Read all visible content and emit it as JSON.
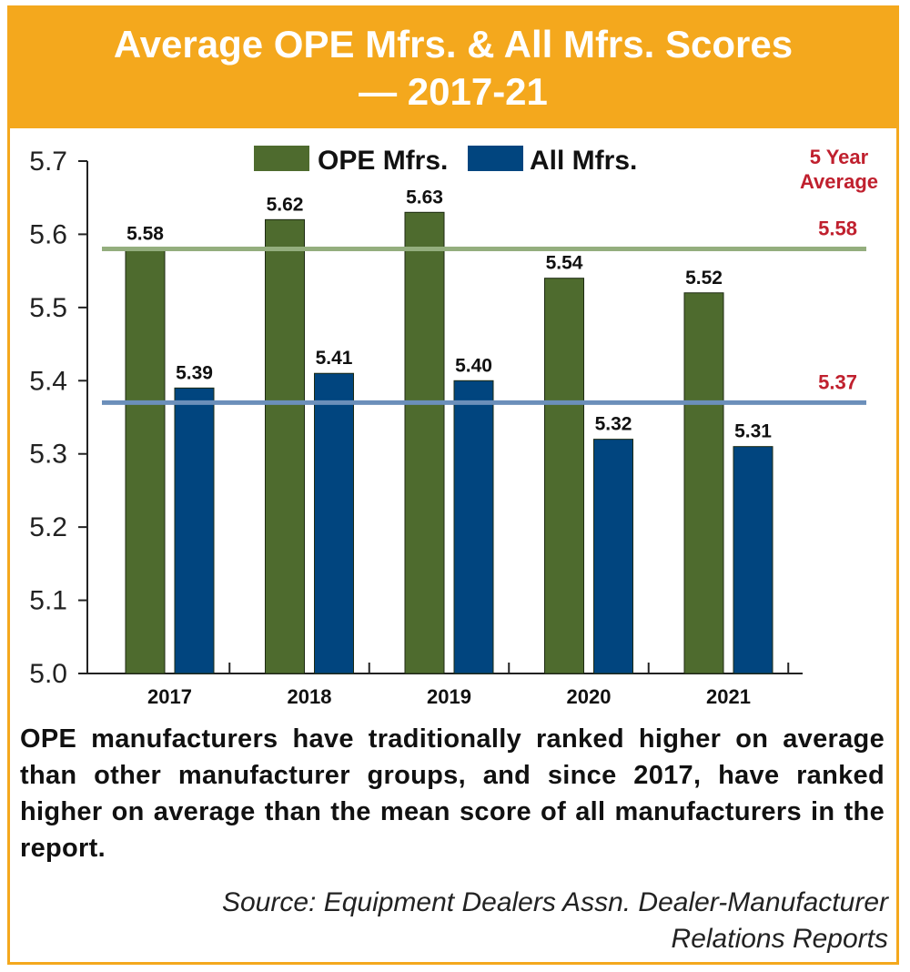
{
  "header": {
    "title_line1": "Average OPE Mfrs. & All Mfrs. Scores",
    "title_line2": "— 2017-21"
  },
  "chart_data": {
    "type": "bar",
    "title": "Average OPE Mfrs. & All Mfrs. Scores — 2017-21",
    "categories": [
      "2017",
      "2018",
      "2019",
      "2020",
      "2021"
    ],
    "series": [
      {
        "name": "OPE Mfrs.",
        "values": [
          5.58,
          5.62,
          5.63,
          5.54,
          5.52
        ],
        "color": "#4e6b2e"
      },
      {
        "name": "All Mfrs.",
        "values": [
          5.39,
          5.41,
          5.4,
          5.32,
          5.31
        ],
        "color": "#01457f"
      }
    ],
    "value_labels": [
      [
        "5.58",
        "5.62",
        "5.63",
        "5.54",
        "5.52"
      ],
      [
        "5.39",
        "5.41",
        "5.40",
        "5.32",
        "5.31"
      ]
    ],
    "ylim": [
      5.0,
      5.7
    ],
    "yticks": [
      "5.0",
      "5.1",
      "5.2",
      "5.3",
      "5.4",
      "5.5",
      "5.6",
      "5.7"
    ],
    "reference_lines": [
      {
        "value": 5.58,
        "label": "5.58",
        "color": "#94ae7e"
      },
      {
        "value": 5.37,
        "label": "5.37",
        "color": "#6b8fba"
      }
    ],
    "reference_title_line1": "5 Year",
    "reference_title_line2": "Average",
    "legend_position": "top-center",
    "grid": false
  },
  "caption": "OPE manufacturers have traditionally ranked higher on average than other manufacturer groups, and since 2017, have ranked higher on average than the mean score of all manufacturers in the report.",
  "source": {
    "line1": "Source: Equipment Dealers Assn. Dealer-Manufacturer",
    "line2": "Relations Reports"
  },
  "colors": {
    "accent": "#f4a81d",
    "annotation_red": "#c0202e"
  }
}
